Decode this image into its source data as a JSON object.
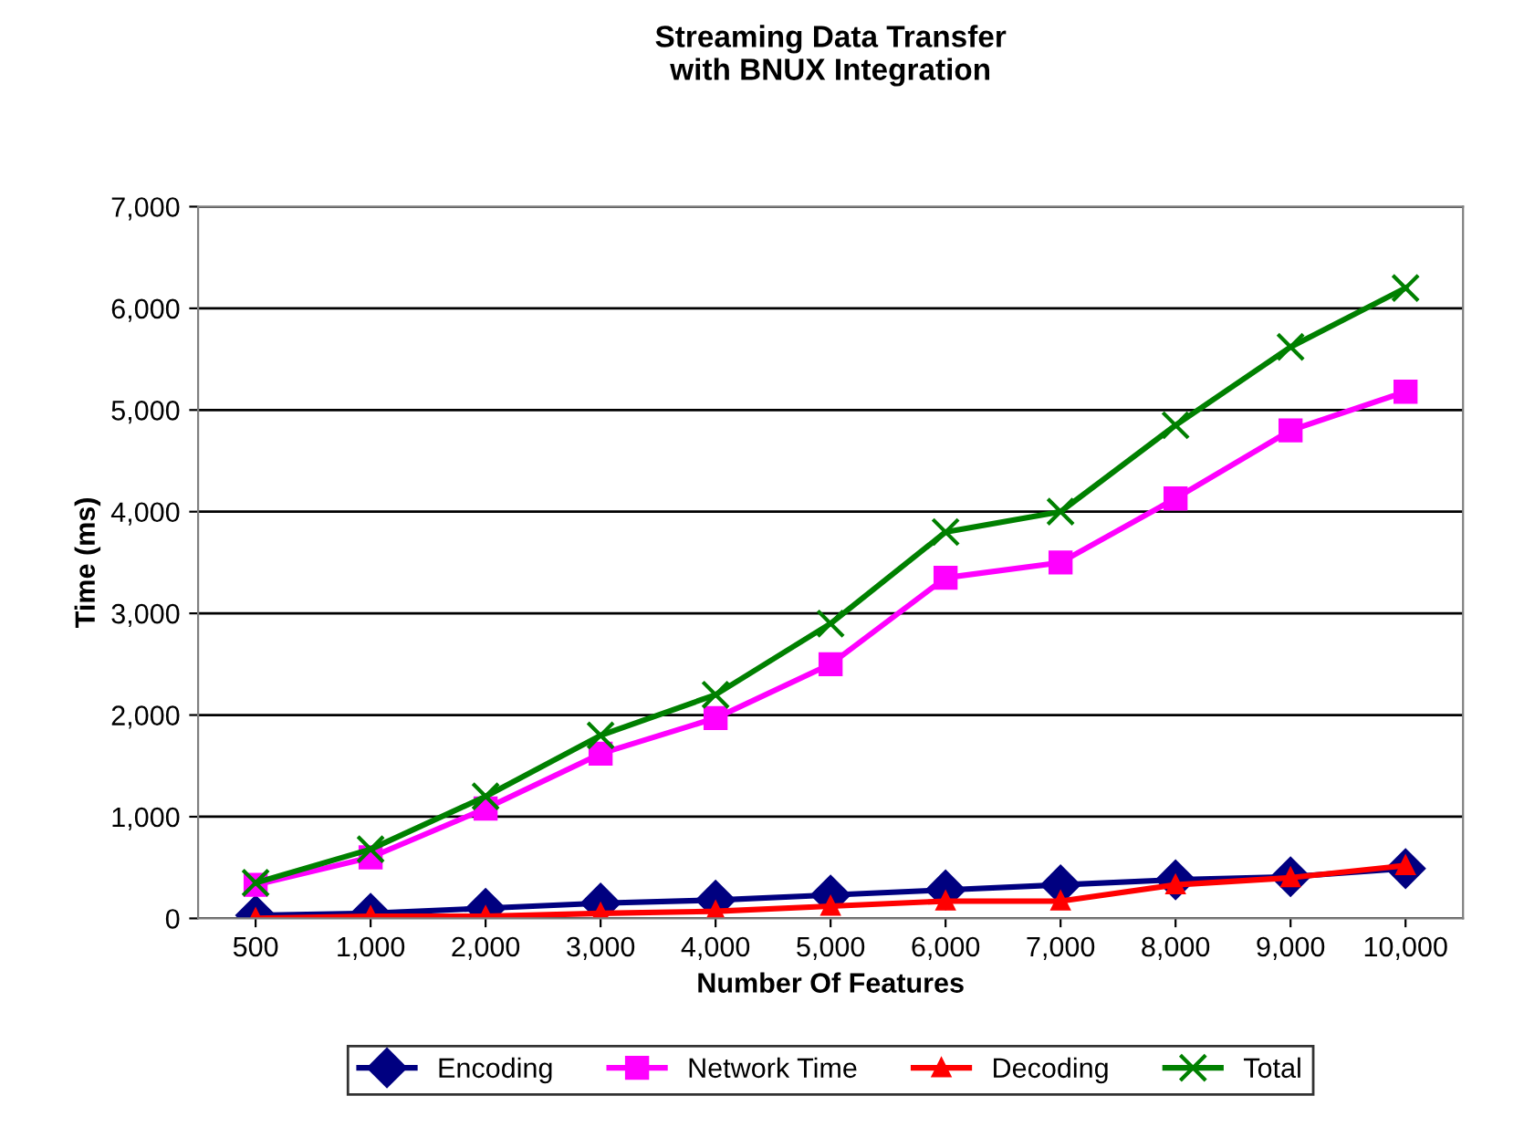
{
  "chart_data": {
    "type": "line",
    "title": "Streaming Data Transfer\nwith BNUX Integration",
    "xlabel": "Number Of Features",
    "ylabel": "Time (ms)",
    "categories": [
      "500",
      "1,000",
      "2,000",
      "3,000",
      "4,000",
      "5,000",
      "6,000",
      "7,000",
      "8,000",
      "9,000",
      "10,000"
    ],
    "series": [
      {
        "name": "Encoding",
        "color": "#000080",
        "marker": "diamond",
        "values": [
          30,
          50,
          100,
          150,
          180,
          230,
          280,
          330,
          380,
          410,
          490
        ]
      },
      {
        "name": "Network Time",
        "color": "#ff00ff",
        "marker": "square",
        "values": [
          330,
          600,
          1080,
          1620,
          1970,
          2500,
          3350,
          3500,
          4130,
          4800,
          5180
        ]
      },
      {
        "name": "Decoding",
        "color": "#ff0000",
        "marker": "triangle",
        "values": [
          0,
          20,
          20,
          50,
          70,
          120,
          170,
          170,
          330,
          400,
          520
        ]
      },
      {
        "name": "Total",
        "color": "#008000",
        "marker": "cross",
        "values": [
          350,
          680,
          1200,
          1800,
          2200,
          2900,
          3800,
          4000,
          4850,
          5620,
          6200
        ]
      }
    ],
    "ylim": [
      0,
      7000
    ],
    "yticks": [
      {
        "value": 0,
        "label": "0"
      },
      {
        "value": 1000,
        "label": "1,000"
      },
      {
        "value": 2000,
        "label": "2,000"
      },
      {
        "value": 3000,
        "label": "3,000"
      },
      {
        "value": 4000,
        "label": "4,000"
      },
      {
        "value": 5000,
        "label": "5,000"
      },
      {
        "value": 6000,
        "label": "6,000"
      },
      {
        "value": 7000,
        "label": "7,000"
      }
    ],
    "grid": "y",
    "legend": "bottom",
    "line_style": "solid"
  }
}
